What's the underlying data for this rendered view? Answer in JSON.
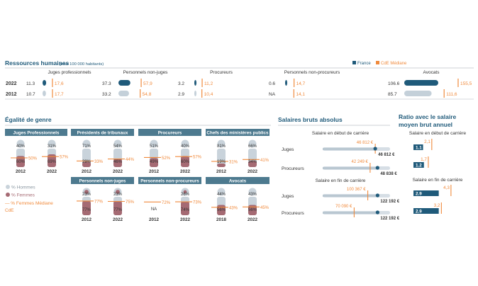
{
  "colors": {
    "france": "#1f5a7a",
    "cde": "#f08a3c",
    "header_band": "#4d7a8f",
    "men": "#c9d3db",
    "women": "#a56a73",
    "bar_track": "#d6dee5",
    "rule": "#9aa3ab",
    "section_title": "#1f5a7a"
  },
  "hr": {
    "title": "Ressources humaines",
    "subtitle": "(pour 100 000 habitants)",
    "legend": {
      "france": "France",
      "cde": "CdE Médiane"
    },
    "years": [
      "2022",
      "2012"
    ],
    "categories": [
      {
        "label": "Juges professionnels",
        "rows": [
          {
            "fr": "11.3",
            "cde": "17,6"
          },
          {
            "fr": "10.7",
            "cde": "17,7"
          }
        ]
      },
      {
        "label": "Personnels non-juges",
        "rows": [
          {
            "fr": "37.3",
            "cde": "57,9"
          },
          {
            "fr": "33.2",
            "cde": "54,8"
          }
        ]
      },
      {
        "label": "Procureurs",
        "rows": [
          {
            "fr": "3.2",
            "cde": "11,2"
          },
          {
            "fr": "2.9",
            "cde": "10,4"
          }
        ]
      },
      {
        "label": "Personnels non-procureurs",
        "rows": [
          {
            "fr": "0.6",
            "cde": "14,7"
          },
          {
            "fr": "NA",
            "cde": "14,1"
          }
        ]
      },
      {
        "label": "Avocats",
        "rows": [
          {
            "fr": "106.6",
            "cde": "155,5"
          },
          {
            "fr": "85.7",
            "cde": "111,6"
          }
        ]
      }
    ]
  },
  "gender": {
    "title": "Égalité de genre",
    "legend": {
      "men": "% Hommes",
      "women": "% Femmes",
      "cde": "— % Femmes Médiane",
      "cde2": "CdE"
    },
    "groups": [
      {
        "label": "Juges Professionnels",
        "items": [
          {
            "year": "2012",
            "men": "40%",
            "women": "60%",
            "cde": "50%"
          },
          {
            "year": "2022",
            "men": "31%",
            "women": "69%",
            "cde": "57%"
          }
        ]
      },
      {
        "label": "Présidents de tribunaux",
        "items": [
          {
            "year": "2012",
            "men": "71%",
            "women": "29%",
            "cde": "33%"
          },
          {
            "year": "2022",
            "men": "54%",
            "women": "46%",
            "cde": "44%"
          }
        ]
      },
      {
        "label": "Procureurs",
        "items": [
          {
            "year": "2012",
            "men": "51%",
            "women": "49%",
            "cde": "52%"
          },
          {
            "year": "2022",
            "men": "40%",
            "women": "60%",
            "cde": "57%"
          }
        ]
      },
      {
        "label": "Chefs des ministères publics",
        "items": [
          {
            "year": "2012",
            "men": "81%",
            "women": "19%",
            "cde": "31%"
          },
          {
            "year": "2022",
            "men": "66%",
            "women": "34%",
            "cde": "41%"
          }
        ]
      },
      {
        "label": "Personnels non-juges",
        "items": [
          {
            "year": "2012",
            "men": "23%",
            "women": "77%",
            "cde": "77%"
          },
          {
            "year": "2022",
            "men": "23%",
            "women": "77%",
            "cde": "75%"
          }
        ]
      },
      {
        "label": "Personnels non-procureurs",
        "items": [
          {
            "year": "2012",
            "men": "NA",
            "women": "",
            "cde": "72%"
          },
          {
            "year": "2022",
            "men": "26%",
            "women": "74%",
            "cde": "73%"
          }
        ]
      },
      {
        "label": "Avocats",
        "items": [
          {
            "year": "2018",
            "men": "44%",
            "women": "56%",
            "cde": "43%"
          },
          {
            "year": "2022",
            "men": "43%",
            "women": "56%",
            "cde": "45%"
          }
        ]
      }
    ]
  },
  "salaries": {
    "title": "Salaires bruts absolus",
    "blocks": [
      {
        "subtitle": "Salaire en début de carrière",
        "rows": [
          {
            "label": "Juges",
            "cde": "46 812 €",
            "fr": "46 812 €"
          },
          {
            "label": "Procureurs",
            "cde": "42 249 €",
            "fr": "48 838 €"
          }
        ]
      },
      {
        "subtitle": "Salaire en fin de carrière",
        "rows": [
          {
            "label": "Juges",
            "cde": "100 367 €",
            "fr": "122 192 €"
          },
          {
            "label": "Procureurs",
            "cde": "70 090 €",
            "fr": "122 192 €"
          }
        ]
      }
    ]
  },
  "ratio": {
    "title_line1": "Ratio avec le salaire",
    "title_line2": "moyen brut annuel",
    "blocks": [
      {
        "subtitle": "Salaire en début de carrière",
        "rows": [
          {
            "fr": "1.1",
            "cde": "2,1"
          },
          {
            "fr": "1.2",
            "cde": "1,7"
          }
        ]
      },
      {
        "subtitle": "Salaire en fin de carrière",
        "rows": [
          {
            "fr": "2.9",
            "cde": "4,3"
          },
          {
            "fr": "2.9",
            "cde": "3,2"
          }
        ]
      }
    ]
  },
  "chart_data": [
    {
      "type": "bar",
      "title": "Ressources humaines",
      "subtitle": "(pour 100 000 habitants)",
      "categories": [
        "Juges professionnels",
        "Personnels non-juges",
        "Procureurs",
        "Personnels non-procureurs",
        "Avocats"
      ],
      "series": [
        {
          "name": "France",
          "year": "2022",
          "values": [
            11.3,
            37.3,
            3.2,
            0.6,
            106.6
          ]
        },
        {
          "name": "France",
          "year": "2012",
          "values": [
            10.7,
            33.2,
            2.9,
            null,
            85.7
          ]
        },
        {
          "name": "CdE Médiane",
          "year": "2022",
          "values": [
            17.6,
            57.9,
            11.2,
            14.7,
            155.5
          ]
        },
        {
          "name": "CdE Médiane",
          "year": "2012",
          "values": [
            17.7,
            54.8,
            10.4,
            14.1,
            111.6
          ]
        }
      ],
      "legend": "top-right"
    },
    {
      "type": "bar",
      "title": "Égalité de genre",
      "categories": [
        "Juges Professionnels",
        "Présidents de tribunaux",
        "Procureurs",
        "Chefs des ministères publics",
        "Personnels non-juges",
        "Personnels non-procureurs",
        "Avocats"
      ],
      "series": [
        {
          "name": "% Femmes",
          "values": [
            [
              60,
              69
            ],
            [
              29,
              46
            ],
            [
              49,
              60
            ],
            [
              19,
              34
            ],
            [
              77,
              77
            ],
            [
              null,
              74
            ],
            [
              56,
              56
            ]
          ]
        },
        {
          "name": "% Hommes",
          "values": [
            [
              40,
              31
            ],
            [
              71,
              54
            ],
            [
              51,
              40
            ],
            [
              81,
              66
            ],
            [
              23,
              23
            ],
            [
              null,
              26
            ],
            [
              44,
              43
            ]
          ]
        },
        {
          "name": "% Femmes Médiane CdE",
          "values": [
            [
              50,
              57
            ],
            [
              33,
              44
            ],
            [
              52,
              57
            ],
            [
              31,
              41
            ],
            [
              77,
              75
            ],
            [
              72,
              73
            ],
            [
              43,
              45
            ]
          ]
        }
      ],
      "legend": "bottom-left"
    },
    {
      "type": "bar",
      "title": "Salaires bruts absolus",
      "categories": [
        "Juges",
        "Procureurs"
      ],
      "series": [
        {
          "name": "Salaire en début de carrière",
          "france": [
            46812,
            48838
          ],
          "cde": [
            46812,
            42249
          ]
        },
        {
          "name": "Salaire en fin de carrière",
          "france": [
            122192,
            122192
          ],
          "cde": [
            100367,
            70090
          ]
        }
      ]
    },
    {
      "type": "bar",
      "title": "Ratio avec le salaire moyen brut annuel",
      "categories": [
        "Juges",
        "Procureurs"
      ],
      "series": [
        {
          "name": "Salaire en début de carrière",
          "france": [
            1.1,
            1.2
          ],
          "cde": [
            2.1,
            1.7
          ]
        },
        {
          "name": "Salaire en fin de carrière",
          "france": [
            2.9,
            2.9
          ],
          "cde": [
            4.3,
            3.2
          ]
        }
      ]
    }
  ]
}
